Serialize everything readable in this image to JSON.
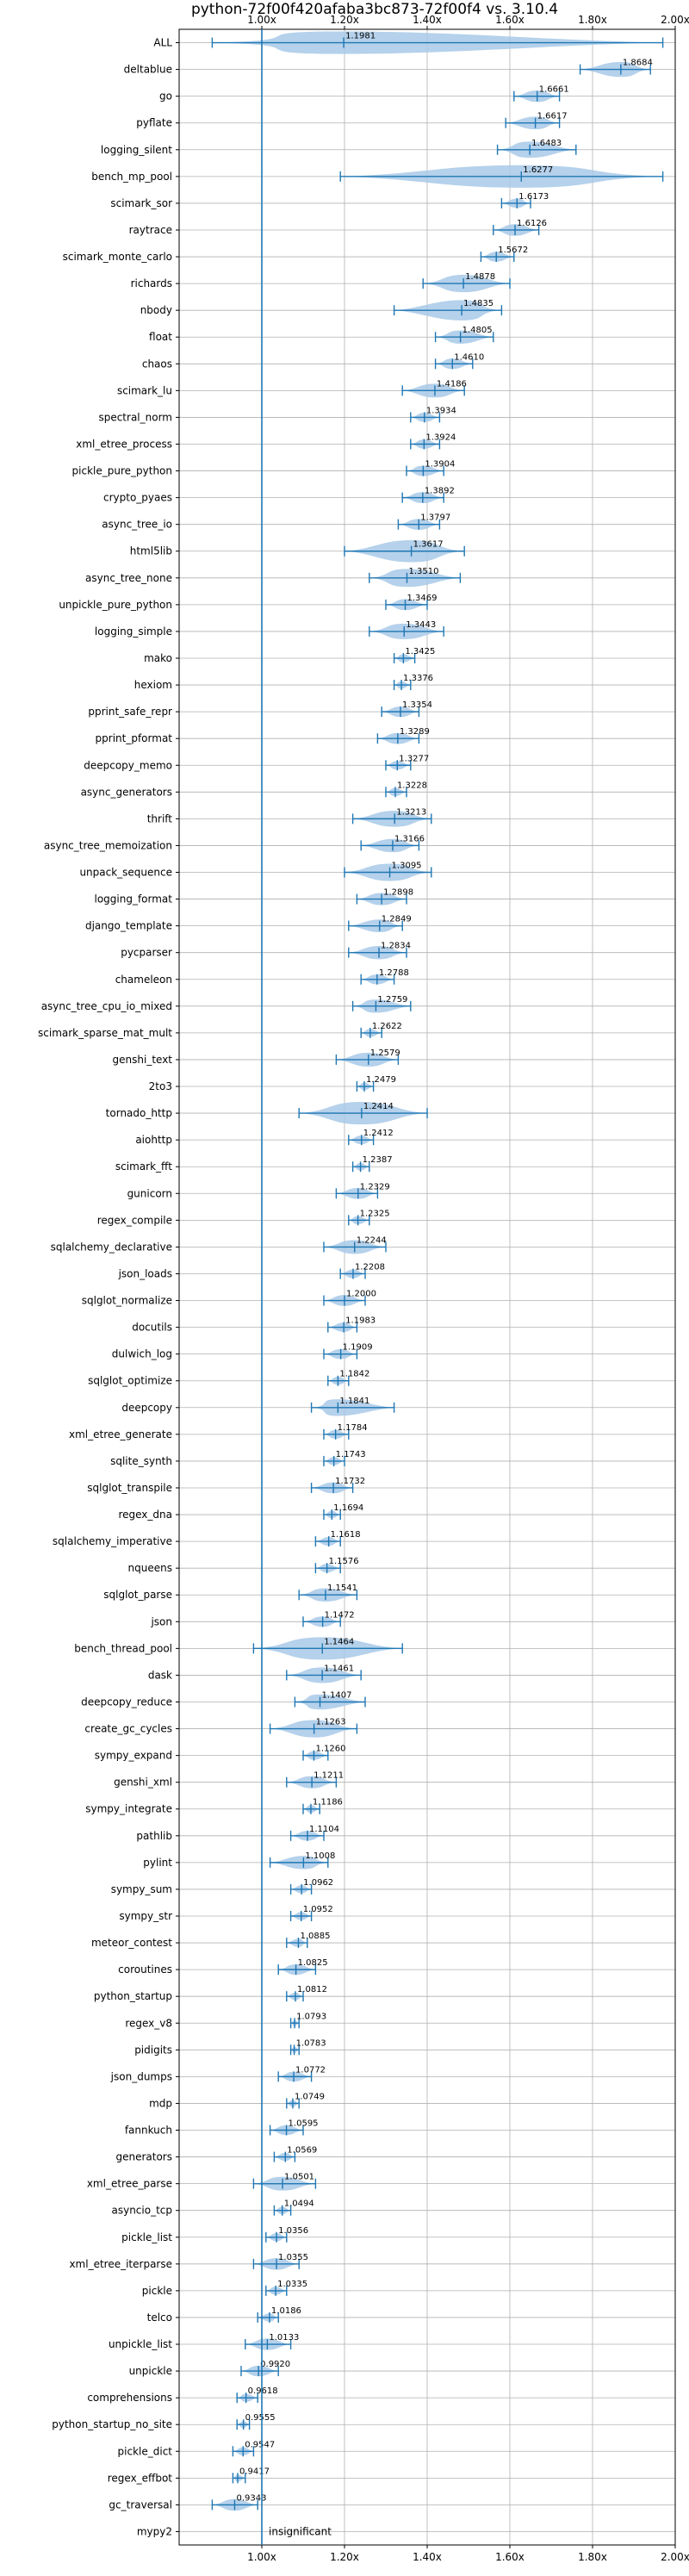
{
  "chart_data": {
    "type": "violin",
    "orientation": "horizontal",
    "title": "python-72f00f420afaba3bc873-72f00f4 vs. 3.10.4",
    "xlabel": "",
    "ylabel": "",
    "xlim": [
      0.8,
      2.0
    ],
    "xticks": [
      1.0,
      1.2,
      1.4,
      1.6,
      1.8,
      2.0
    ],
    "xtick_labels": [
      "1.00x",
      "1.20x",
      "1.40x",
      "1.60x",
      "1.80x",
      "2.00x"
    ],
    "grid": true,
    "reference_line": 1.0,
    "colors": {
      "violin": "#a8c9e8",
      "line": "#1f77b4",
      "grid": "#b0b0b0"
    },
    "benchmarks": [
      {
        "name": "ALL",
        "value": 1.1981,
        "min": 0.88,
        "max": 1.97
      },
      {
        "name": "deltablue",
        "value": 1.8684,
        "min": 1.77,
        "max": 1.94
      },
      {
        "name": "go",
        "value": 1.6661,
        "min": 1.61,
        "max": 1.72
      },
      {
        "name": "pyflate",
        "value": 1.6617,
        "min": 1.59,
        "max": 1.72
      },
      {
        "name": "logging_silent",
        "value": 1.6483,
        "min": 1.57,
        "max": 1.76
      },
      {
        "name": "bench_mp_pool",
        "value": 1.6277,
        "min": 1.19,
        "max": 1.97
      },
      {
        "name": "scimark_sor",
        "value": 1.6173,
        "min": 1.58,
        "max": 1.65
      },
      {
        "name": "raytrace",
        "value": 1.6126,
        "min": 1.56,
        "max": 1.67
      },
      {
        "name": "scimark_monte_carlo",
        "value": 1.5672,
        "min": 1.53,
        "max": 1.61
      },
      {
        "name": "richards",
        "value": 1.4878,
        "min": 1.39,
        "max": 1.6
      },
      {
        "name": "nbody",
        "value": 1.4835,
        "min": 1.32,
        "max": 1.58
      },
      {
        "name": "float",
        "value": 1.4805,
        "min": 1.42,
        "max": 1.56
      },
      {
        "name": "chaos",
        "value": 1.461,
        "min": 1.42,
        "max": 1.51
      },
      {
        "name": "scimark_lu",
        "value": 1.4186,
        "min": 1.34,
        "max": 1.49
      },
      {
        "name": "spectral_norm",
        "value": 1.3934,
        "min": 1.36,
        "max": 1.43
      },
      {
        "name": "xml_etree_process",
        "value": 1.3924,
        "min": 1.36,
        "max": 1.43
      },
      {
        "name": "pickle_pure_python",
        "value": 1.3904,
        "min": 1.35,
        "max": 1.44
      },
      {
        "name": "crypto_pyaes",
        "value": 1.3892,
        "min": 1.34,
        "max": 1.44
      },
      {
        "name": "async_tree_io",
        "value": 1.3797,
        "min": 1.33,
        "max": 1.43
      },
      {
        "name": "html5lib",
        "value": 1.3617,
        "min": 1.2,
        "max": 1.49
      },
      {
        "name": "async_tree_none",
        "value": 1.351,
        "min": 1.26,
        "max": 1.48
      },
      {
        "name": "unpickle_pure_python",
        "value": 1.3469,
        "min": 1.3,
        "max": 1.4
      },
      {
        "name": "logging_simple",
        "value": 1.3443,
        "min": 1.26,
        "max": 1.44
      },
      {
        "name": "mako",
        "value": 1.3425,
        "min": 1.32,
        "max": 1.37
      },
      {
        "name": "hexiom",
        "value": 1.3376,
        "min": 1.32,
        "max": 1.36
      },
      {
        "name": "pprint_safe_repr",
        "value": 1.3354,
        "min": 1.29,
        "max": 1.38
      },
      {
        "name": "pprint_pformat",
        "value": 1.3289,
        "min": 1.28,
        "max": 1.38
      },
      {
        "name": "deepcopy_memo",
        "value": 1.3277,
        "min": 1.3,
        "max": 1.36
      },
      {
        "name": "async_generators",
        "value": 1.3228,
        "min": 1.3,
        "max": 1.35
      },
      {
        "name": "thrift",
        "value": 1.3213,
        "min": 1.22,
        "max": 1.41
      },
      {
        "name": "async_tree_memoization",
        "value": 1.3166,
        "min": 1.24,
        "max": 1.38
      },
      {
        "name": "unpack_sequence",
        "value": 1.3095,
        "min": 1.2,
        "max": 1.41
      },
      {
        "name": "logging_format",
        "value": 1.2898,
        "min": 1.23,
        "max": 1.35
      },
      {
        "name": "django_template",
        "value": 1.2849,
        "min": 1.21,
        "max": 1.34
      },
      {
        "name": "pycparser",
        "value": 1.2834,
        "min": 1.21,
        "max": 1.35
      },
      {
        "name": "chameleon",
        "value": 1.2788,
        "min": 1.24,
        "max": 1.32
      },
      {
        "name": "async_tree_cpu_io_mixed",
        "value": 1.2759,
        "min": 1.22,
        "max": 1.36
      },
      {
        "name": "scimark_sparse_mat_mult",
        "value": 1.2622,
        "min": 1.24,
        "max": 1.29
      },
      {
        "name": "genshi_text",
        "value": 1.2579,
        "min": 1.18,
        "max": 1.33
      },
      {
        "name": "2to3",
        "value": 1.2479,
        "min": 1.23,
        "max": 1.27
      },
      {
        "name": "tornado_http",
        "value": 1.2414,
        "min": 1.09,
        "max": 1.4
      },
      {
        "name": "aiohttp",
        "value": 1.2412,
        "min": 1.21,
        "max": 1.27
      },
      {
        "name": "scimark_fft",
        "value": 1.2387,
        "min": 1.22,
        "max": 1.26
      },
      {
        "name": "gunicorn",
        "value": 1.2329,
        "min": 1.18,
        "max": 1.28
      },
      {
        "name": "regex_compile",
        "value": 1.2325,
        "min": 1.21,
        "max": 1.26
      },
      {
        "name": "sqlalchemy_declarative",
        "value": 1.2244,
        "min": 1.15,
        "max": 1.3
      },
      {
        "name": "json_loads",
        "value": 1.2208,
        "min": 1.19,
        "max": 1.25
      },
      {
        "name": "sqlglot_normalize",
        "value": 1.2,
        "min": 1.15,
        "max": 1.25
      },
      {
        "name": "docutils",
        "value": 1.1983,
        "min": 1.16,
        "max": 1.23
      },
      {
        "name": "dulwich_log",
        "value": 1.1909,
        "min": 1.15,
        "max": 1.23
      },
      {
        "name": "sqlglot_optimize",
        "value": 1.1842,
        "min": 1.16,
        "max": 1.21
      },
      {
        "name": "deepcopy",
        "value": 1.1841,
        "min": 1.12,
        "max": 1.32
      },
      {
        "name": "xml_etree_generate",
        "value": 1.1784,
        "min": 1.15,
        "max": 1.21
      },
      {
        "name": "sqlite_synth",
        "value": 1.1743,
        "min": 1.15,
        "max": 1.2
      },
      {
        "name": "sqlglot_transpile",
        "value": 1.1732,
        "min": 1.12,
        "max": 1.22
      },
      {
        "name": "regex_dna",
        "value": 1.1694,
        "min": 1.15,
        "max": 1.19
      },
      {
        "name": "sqlalchemy_imperative",
        "value": 1.1618,
        "min": 1.13,
        "max": 1.19
      },
      {
        "name": "nqueens",
        "value": 1.1576,
        "min": 1.13,
        "max": 1.19
      },
      {
        "name": "sqlglot_parse",
        "value": 1.1541,
        "min": 1.09,
        "max": 1.23
      },
      {
        "name": "json",
        "value": 1.1472,
        "min": 1.1,
        "max": 1.19
      },
      {
        "name": "bench_thread_pool",
        "value": 1.1464,
        "min": 0.98,
        "max": 1.34
      },
      {
        "name": "dask",
        "value": 1.1461,
        "min": 1.06,
        "max": 1.24
      },
      {
        "name": "deepcopy_reduce",
        "value": 1.1407,
        "min": 1.08,
        "max": 1.25
      },
      {
        "name": "create_gc_cycles",
        "value": 1.1263,
        "min": 1.02,
        "max": 1.23
      },
      {
        "name": "sympy_expand",
        "value": 1.126,
        "min": 1.1,
        "max": 1.16
      },
      {
        "name": "genshi_xml",
        "value": 1.1211,
        "min": 1.06,
        "max": 1.18
      },
      {
        "name": "sympy_integrate",
        "value": 1.1186,
        "min": 1.1,
        "max": 1.14
      },
      {
        "name": "pathlib",
        "value": 1.1104,
        "min": 1.07,
        "max": 1.15
      },
      {
        "name": "pylint",
        "value": 1.1008,
        "min": 1.02,
        "max": 1.16
      },
      {
        "name": "sympy_sum",
        "value": 1.0962,
        "min": 1.07,
        "max": 1.12
      },
      {
        "name": "sympy_str",
        "value": 1.0952,
        "min": 1.07,
        "max": 1.12
      },
      {
        "name": "meteor_contest",
        "value": 1.0885,
        "min": 1.06,
        "max": 1.11
      },
      {
        "name": "coroutines",
        "value": 1.0825,
        "min": 1.04,
        "max": 1.13
      },
      {
        "name": "python_startup",
        "value": 1.0812,
        "min": 1.06,
        "max": 1.1
      },
      {
        "name": "regex_v8",
        "value": 1.0793,
        "min": 1.07,
        "max": 1.09
      },
      {
        "name": "pidigits",
        "value": 1.0783,
        "min": 1.07,
        "max": 1.09
      },
      {
        "name": "json_dumps",
        "value": 1.0772,
        "min": 1.04,
        "max": 1.12
      },
      {
        "name": "mdp",
        "value": 1.0749,
        "min": 1.06,
        "max": 1.09
      },
      {
        "name": "fannkuch",
        "value": 1.0595,
        "min": 1.02,
        "max": 1.1
      },
      {
        "name": "generators",
        "value": 1.0569,
        "min": 1.03,
        "max": 1.08
      },
      {
        "name": "xml_etree_parse",
        "value": 1.0501,
        "min": 0.98,
        "max": 1.13
      },
      {
        "name": "asyncio_tcp",
        "value": 1.0494,
        "min": 1.03,
        "max": 1.07
      },
      {
        "name": "pickle_list",
        "value": 1.0356,
        "min": 1.01,
        "max": 1.06
      },
      {
        "name": "xml_etree_iterparse",
        "value": 1.0355,
        "min": 0.98,
        "max": 1.09
      },
      {
        "name": "pickle",
        "value": 1.0335,
        "min": 1.01,
        "max": 1.06
      },
      {
        "name": "telco",
        "value": 1.0186,
        "min": 0.99,
        "max": 1.04
      },
      {
        "name": "unpickle_list",
        "value": 1.0133,
        "min": 0.96,
        "max": 1.07
      },
      {
        "name": "unpickle",
        "value": 0.992,
        "min": 0.95,
        "max": 1.04
      },
      {
        "name": "comprehensions",
        "value": 0.9618,
        "min": 0.94,
        "max": 0.99
      },
      {
        "name": "python_startup_no_site",
        "value": 0.9555,
        "min": 0.94,
        "max": 0.97
      },
      {
        "name": "pickle_dict",
        "value": 0.9547,
        "min": 0.93,
        "max": 0.98
      },
      {
        "name": "regex_effbot",
        "value": 0.9417,
        "min": 0.93,
        "max": 0.96
      },
      {
        "name": "gc_traversal",
        "value": 0.9343,
        "min": 0.88,
        "max": 0.99
      },
      {
        "name": "mypy2",
        "value": null,
        "min": null,
        "max": null,
        "note": "insignificant"
      }
    ]
  }
}
